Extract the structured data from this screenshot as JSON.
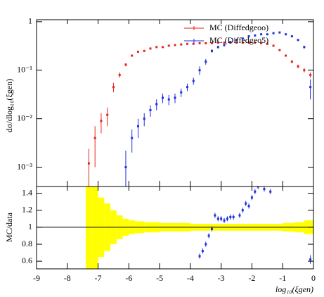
{
  "chart_data": [
    {
      "type": "errorbar",
      "log_y": true,
      "y_label": "dσ/dlog₁₀(ξgen)",
      "xlim": [
        -9,
        0
      ],
      "xticks": [
        -9,
        -8,
        -7,
        -6,
        -5,
        -4,
        -3,
        -2,
        -1,
        0
      ],
      "ylim": [
        0.0004,
        1.1
      ],
      "yticks": [
        {
          "value": 0.001,
          "label": "10⁻³"
        },
        {
          "value": 0.01,
          "label": "10⁻²"
        },
        {
          "value": 0.1,
          "label": "10⁻¹"
        },
        1
      ],
      "legend": "top-right",
      "series": [
        {
          "name": "MC (Diffedgeoo)",
          "color": "#e8231f",
          "x": [
            -7.3,
            -7.1,
            -6.9,
            -6.7,
            -6.5,
            -6.3,
            -6.1,
            -5.9,
            -5.7,
            -5.5,
            -5.3,
            -5.1,
            -4.9,
            -4.7,
            -4.5,
            -4.3,
            -4.1,
            -3.9,
            -3.7,
            -3.5,
            -3.3,
            -3.1,
            -2.9,
            -2.7,
            -2.5,
            -2.3,
            -2.1,
            -1.9,
            -1.7,
            -1.5,
            -1.3,
            -1.1,
            -0.9,
            -0.7,
            -0.5,
            -0.3,
            -0.1
          ],
          "values": [
            0.0012,
            0.004,
            0.009,
            0.012,
            0.045,
            0.08,
            0.13,
            0.2,
            0.24,
            0.25,
            0.28,
            0.3,
            0.3,
            0.32,
            0.33,
            0.34,
            0.35,
            0.35,
            0.36,
            0.36,
            0.36,
            0.37,
            0.37,
            0.37,
            0.37,
            0.37,
            0.37,
            0.37,
            0.36,
            0.35,
            0.32,
            0.26,
            0.2,
            0.15,
            0.12,
            0.1,
            0.08
          ],
          "errors": [
            0.0012,
            0.003,
            0.004,
            0.005,
            0.01,
            0.01,
            0.01,
            0.01,
            0.01,
            0.01,
            0.01,
            0.01,
            0.01,
            0.01,
            0.01,
            0.01,
            0.01,
            0.01,
            0.01,
            0.01,
            0.01,
            0.01,
            0.01,
            0.01,
            0.01,
            0.01,
            0.01,
            0.01,
            0.01,
            0.01,
            0.01,
            0.01,
            0.01,
            0.01,
            0.01,
            0.01,
            0.01
          ]
        },
        {
          "name": "MC (Diffedgeo5)",
          "color": "#1f2fe0",
          "x": [
            -6.1,
            -5.9,
            -5.7,
            -5.5,
            -5.3,
            -5.1,
            -4.9,
            -4.7,
            -4.5,
            -4.3,
            -4.1,
            -3.9,
            -3.7,
            -3.5,
            -3.3,
            -3.1,
            -2.9,
            -2.7,
            -2.5,
            -2.3,
            -2.1,
            -1.9,
            -1.7,
            -1.5,
            -1.3,
            -1.1,
            -0.9,
            -0.7,
            -0.5,
            -0.3,
            -0.1
          ],
          "values": [
            0.001,
            0.004,
            0.007,
            0.01,
            0.015,
            0.02,
            0.027,
            0.025,
            0.027,
            0.035,
            0.045,
            0.06,
            0.1,
            0.15,
            0.25,
            0.3,
            0.33,
            0.38,
            0.42,
            0.45,
            0.5,
            0.52,
            0.55,
            0.55,
            0.58,
            0.6,
            0.55,
            0.5,
            0.42,
            0.3,
            0.045
          ],
          "errors": [
            0.0012,
            0.002,
            0.003,
            0.003,
            0.004,
            0.005,
            0.006,
            0.006,
            0.006,
            0.007,
            0.008,
            0.01,
            0.02,
            0.02,
            0.02,
            0.02,
            0.02,
            0.02,
            0.02,
            0.02,
            0.02,
            0.02,
            0.02,
            0.02,
            0.02,
            0.02,
            0.02,
            0.02,
            0.02,
            0.02,
            0.02
          ]
        }
      ]
    },
    {
      "type": "ratio",
      "x_label": "log₁₀(ξgen)",
      "y_label": "MC/data",
      "xlim": [
        -9,
        0
      ],
      "xticks": [
        -9,
        -8,
        -7,
        -6,
        -5,
        -4,
        -3,
        -2,
        -1,
        0
      ],
      "ylim": [
        0.51,
        1.48
      ],
      "yticks": [
        0.6,
        0.8,
        1,
        1.2,
        1.4
      ],
      "reference": 1,
      "band": {
        "color": "#ffff00",
        "bins": [
          -7.4,
          -7.2,
          -7.0,
          -6.8,
          -6.6,
          -6.4,
          -6.2,
          -6.0,
          -5.8,
          -5.5,
          -5.0,
          -4.0,
          -3.0,
          -2.0,
          -1.0,
          -0.6,
          -0.3,
          0
        ],
        "half_widths": [
          0.5,
          0.5,
          0.35,
          0.28,
          0.2,
          0.14,
          0.1,
          0.08,
          0.07,
          0.06,
          0.05,
          0.04,
          0.04,
          0.04,
          0.05,
          0.06,
          0.08
        ]
      },
      "series": [
        {
          "name": "MC (Diffedgeo5)",
          "color": "#1f2fe0",
          "x": [
            -3.7,
            -3.6,
            -3.5,
            -3.4,
            -3.3,
            -3.2,
            -3.1,
            -3.0,
            -2.9,
            -2.8,
            -2.7,
            -2.6,
            -2.4,
            -2.3,
            -2.2,
            -2.1,
            -2.0,
            -1.9,
            -1.8,
            -1.6,
            -1.4,
            -0.1
          ],
          "values": [
            0.66,
            0.72,
            0.8,
            0.9,
            0.98,
            1.14,
            1.1,
            1.1,
            1.08,
            1.1,
            1.12,
            1.12,
            1.14,
            1.2,
            1.28,
            1.25,
            1.35,
            1.42,
            1.48,
            1.45,
            1.42,
            0.62
          ],
          "errors": [
            0.03,
            0.03,
            0.03,
            0.03,
            0.03,
            0.03,
            0.03,
            0.03,
            0.03,
            0.03,
            0.03,
            0.03,
            0.03,
            0.03,
            0.03,
            0.03,
            0.03,
            0.03,
            0.03,
            0.03,
            0.03,
            0.05
          ]
        }
      ]
    }
  ]
}
